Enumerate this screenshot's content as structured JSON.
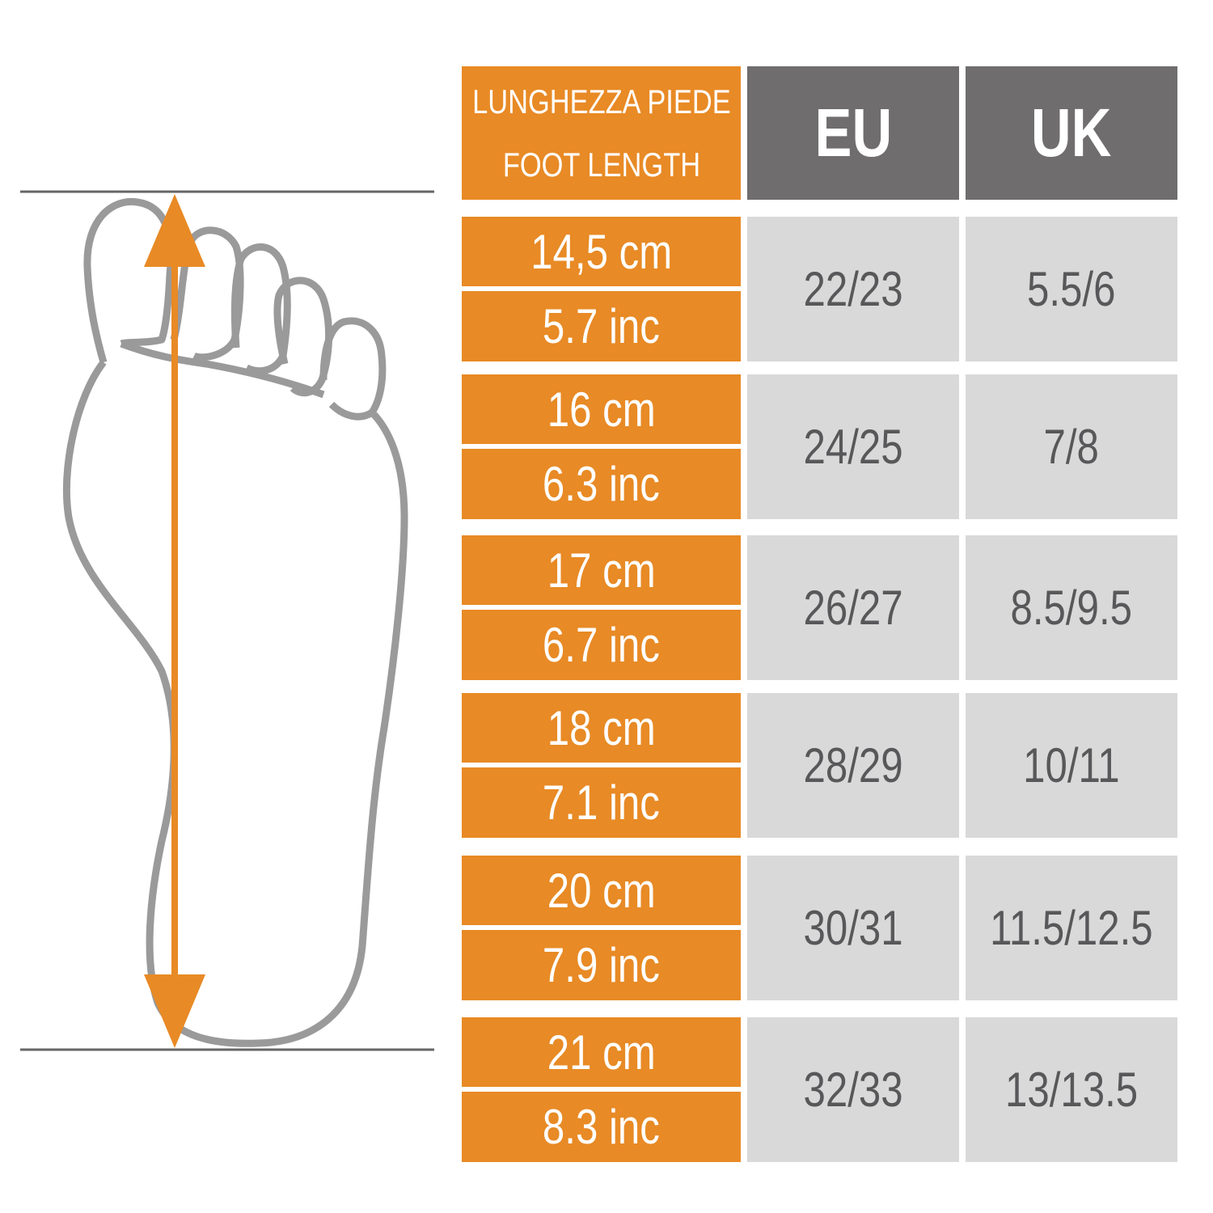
{
  "header": {
    "length_label_it": "LUNGHEZZA PIEDE",
    "length_label_en": "FOOT LENGTH",
    "eu": "EU",
    "uk": "UK"
  },
  "rows": [
    {
      "cm": "14,5 cm",
      "inch": "5.7 inc",
      "eu": "22/23",
      "uk": "5.5/6"
    },
    {
      "cm": "16 cm",
      "inch": "6.3 inc",
      "eu": "24/25",
      "uk": "7/8"
    },
    {
      "cm": "17 cm",
      "inch": "6.7 inc",
      "eu": "26/27",
      "uk": "8.5/9.5"
    },
    {
      "cm": "18 cm",
      "inch": "7.1 inc",
      "eu": "28/29",
      "uk": "10/11"
    },
    {
      "cm": "20 cm",
      "inch": "7.9 inc",
      "eu": "30/31",
      "uk": "11.5/12.5"
    },
    {
      "cm": "21 cm",
      "inch": "8.3 inc",
      "eu": "32/33",
      "uk": "13/13.5"
    }
  ],
  "colors": {
    "orange": "#E88A25",
    "header_grey": "#6F6D6E",
    "cell_grey": "#D9D9D9",
    "text_grey": "#58585A",
    "outline": "#9A9A9A"
  },
  "illustration": {
    "icon": "foot-outline-icon",
    "arrow": "double-arrow-icon"
  }
}
